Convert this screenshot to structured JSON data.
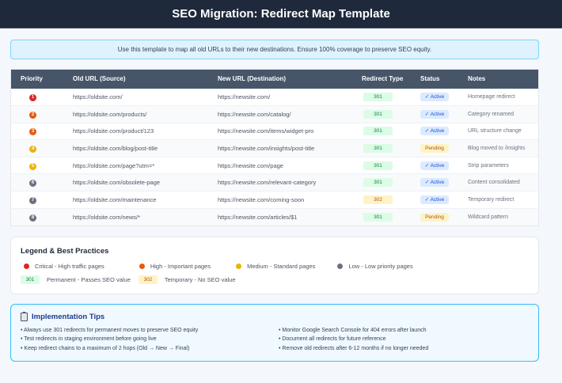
{
  "header": {
    "title": "SEO Migration: Redirect Map Template"
  },
  "info_banner": {
    "text": "Use this template to map all old URLs to their new destinations. Ensure 100% coverage to preserve SEO equity."
  },
  "table": {
    "columns": [
      "Priority",
      "Old URL (Source)",
      "New URL (Destination)",
      "Redirect Type",
      "Status",
      "Notes"
    ],
    "rows": [
      {
        "priority": "1",
        "priority_color": "#dc2626",
        "old_url": "https://oldsite.com/",
        "new_url": "https://newsite.com/",
        "redirect_type": "301",
        "status": "✓ Active",
        "notes": "Homepage redirect"
      },
      {
        "priority": "2",
        "priority_color": "#ea580c",
        "old_url": "https://oldsite.com/products/",
        "new_url": "https://newsite.com/catalog/",
        "redirect_type": "301",
        "status": "✓ Active",
        "notes": "Category renamed"
      },
      {
        "priority": "3",
        "priority_color": "#ea580c",
        "old_url": "https://oldsite.com/product/123",
        "new_url": "https://newsite.com/items/widget-pro",
        "redirect_type": "301",
        "status": "✓ Active",
        "notes": "URL structure change"
      },
      {
        "priority": "4",
        "priority_color": "#eab308",
        "old_url": "https://oldsite.com/blog/post-title",
        "new_url": "https://newsite.com/insights/post-title",
        "redirect_type": "301",
        "status": "Pending",
        "notes": "Blog moved to /insights"
      },
      {
        "priority": "5",
        "priority_color": "#eab308",
        "old_url": "https://oldsite.com/page?utm=*",
        "new_url": "https://newsite.com/page",
        "redirect_type": "301",
        "status": "✓ Active",
        "notes": "Strip parameters"
      },
      {
        "priority": "6",
        "priority_color": "#6b7280",
        "old_url": "https://oldsite.com/obsolete-page",
        "new_url": "https://newsite.com/relevant-category",
        "redirect_type": "301",
        "status": "✓ Active",
        "notes": "Content consolidated"
      },
      {
        "priority": "7",
        "priority_color": "#6b7280",
        "old_url": "https://oldsite.com/maintenance",
        "new_url": "https://newsite.com/coming-soon",
        "redirect_type": "302",
        "status": "✓ Active",
        "notes": "Temporary redirect"
      },
      {
        "priority": "8",
        "priority_color": "#6b7280",
        "old_url": "https://oldsite.com/news/*",
        "new_url": "https://newsite.com/articles/$1",
        "redirect_type": "301",
        "status": "Pending",
        "notes": "Wildcard pattern"
      }
    ]
  },
  "legend": {
    "title": "Legend & Best Practices",
    "priorities": [
      {
        "label": "Critical - High traffic pages",
        "color": "#dc2626"
      },
      {
        "label": "High - Important pages",
        "color": "#ea580c"
      },
      {
        "label": "Medium - Standard pages",
        "color": "#eab308"
      },
      {
        "label": "Low - Low priority pages",
        "color": "#6b7280"
      }
    ],
    "types": [
      {
        "code": "301",
        "label": "Permanent - Passes SEO value"
      },
      {
        "code": "302",
        "label": "Temporary - No SEO value"
      }
    ]
  },
  "tips": {
    "title": "Implementation Tips",
    "left": [
      "• Always use 301 redirects for permanent moves to preserve SEO equity",
      "• Test redirects in staging environment before going live",
      "• Keep redirect chains to a maximum of 2 hops (Old → New → Final)"
    ],
    "right": [
      "• Monitor Google Search Console for 404 errors after launch",
      "• Document all redirects for future reference",
      "• Remove old redirects after 6-12 months if no longer needed"
    ]
  },
  "colors": {
    "type_301_bg": "#dcfce7",
    "type_301_fg": "#15803d",
    "type_302_bg": "#fef3c7",
    "type_302_fg": "#b45309",
    "active_bg": "#dbeafe",
    "active_fg": "#1d4ed8",
    "pending_bg": "#fef3c7",
    "pending_fg": "#b45309"
  }
}
